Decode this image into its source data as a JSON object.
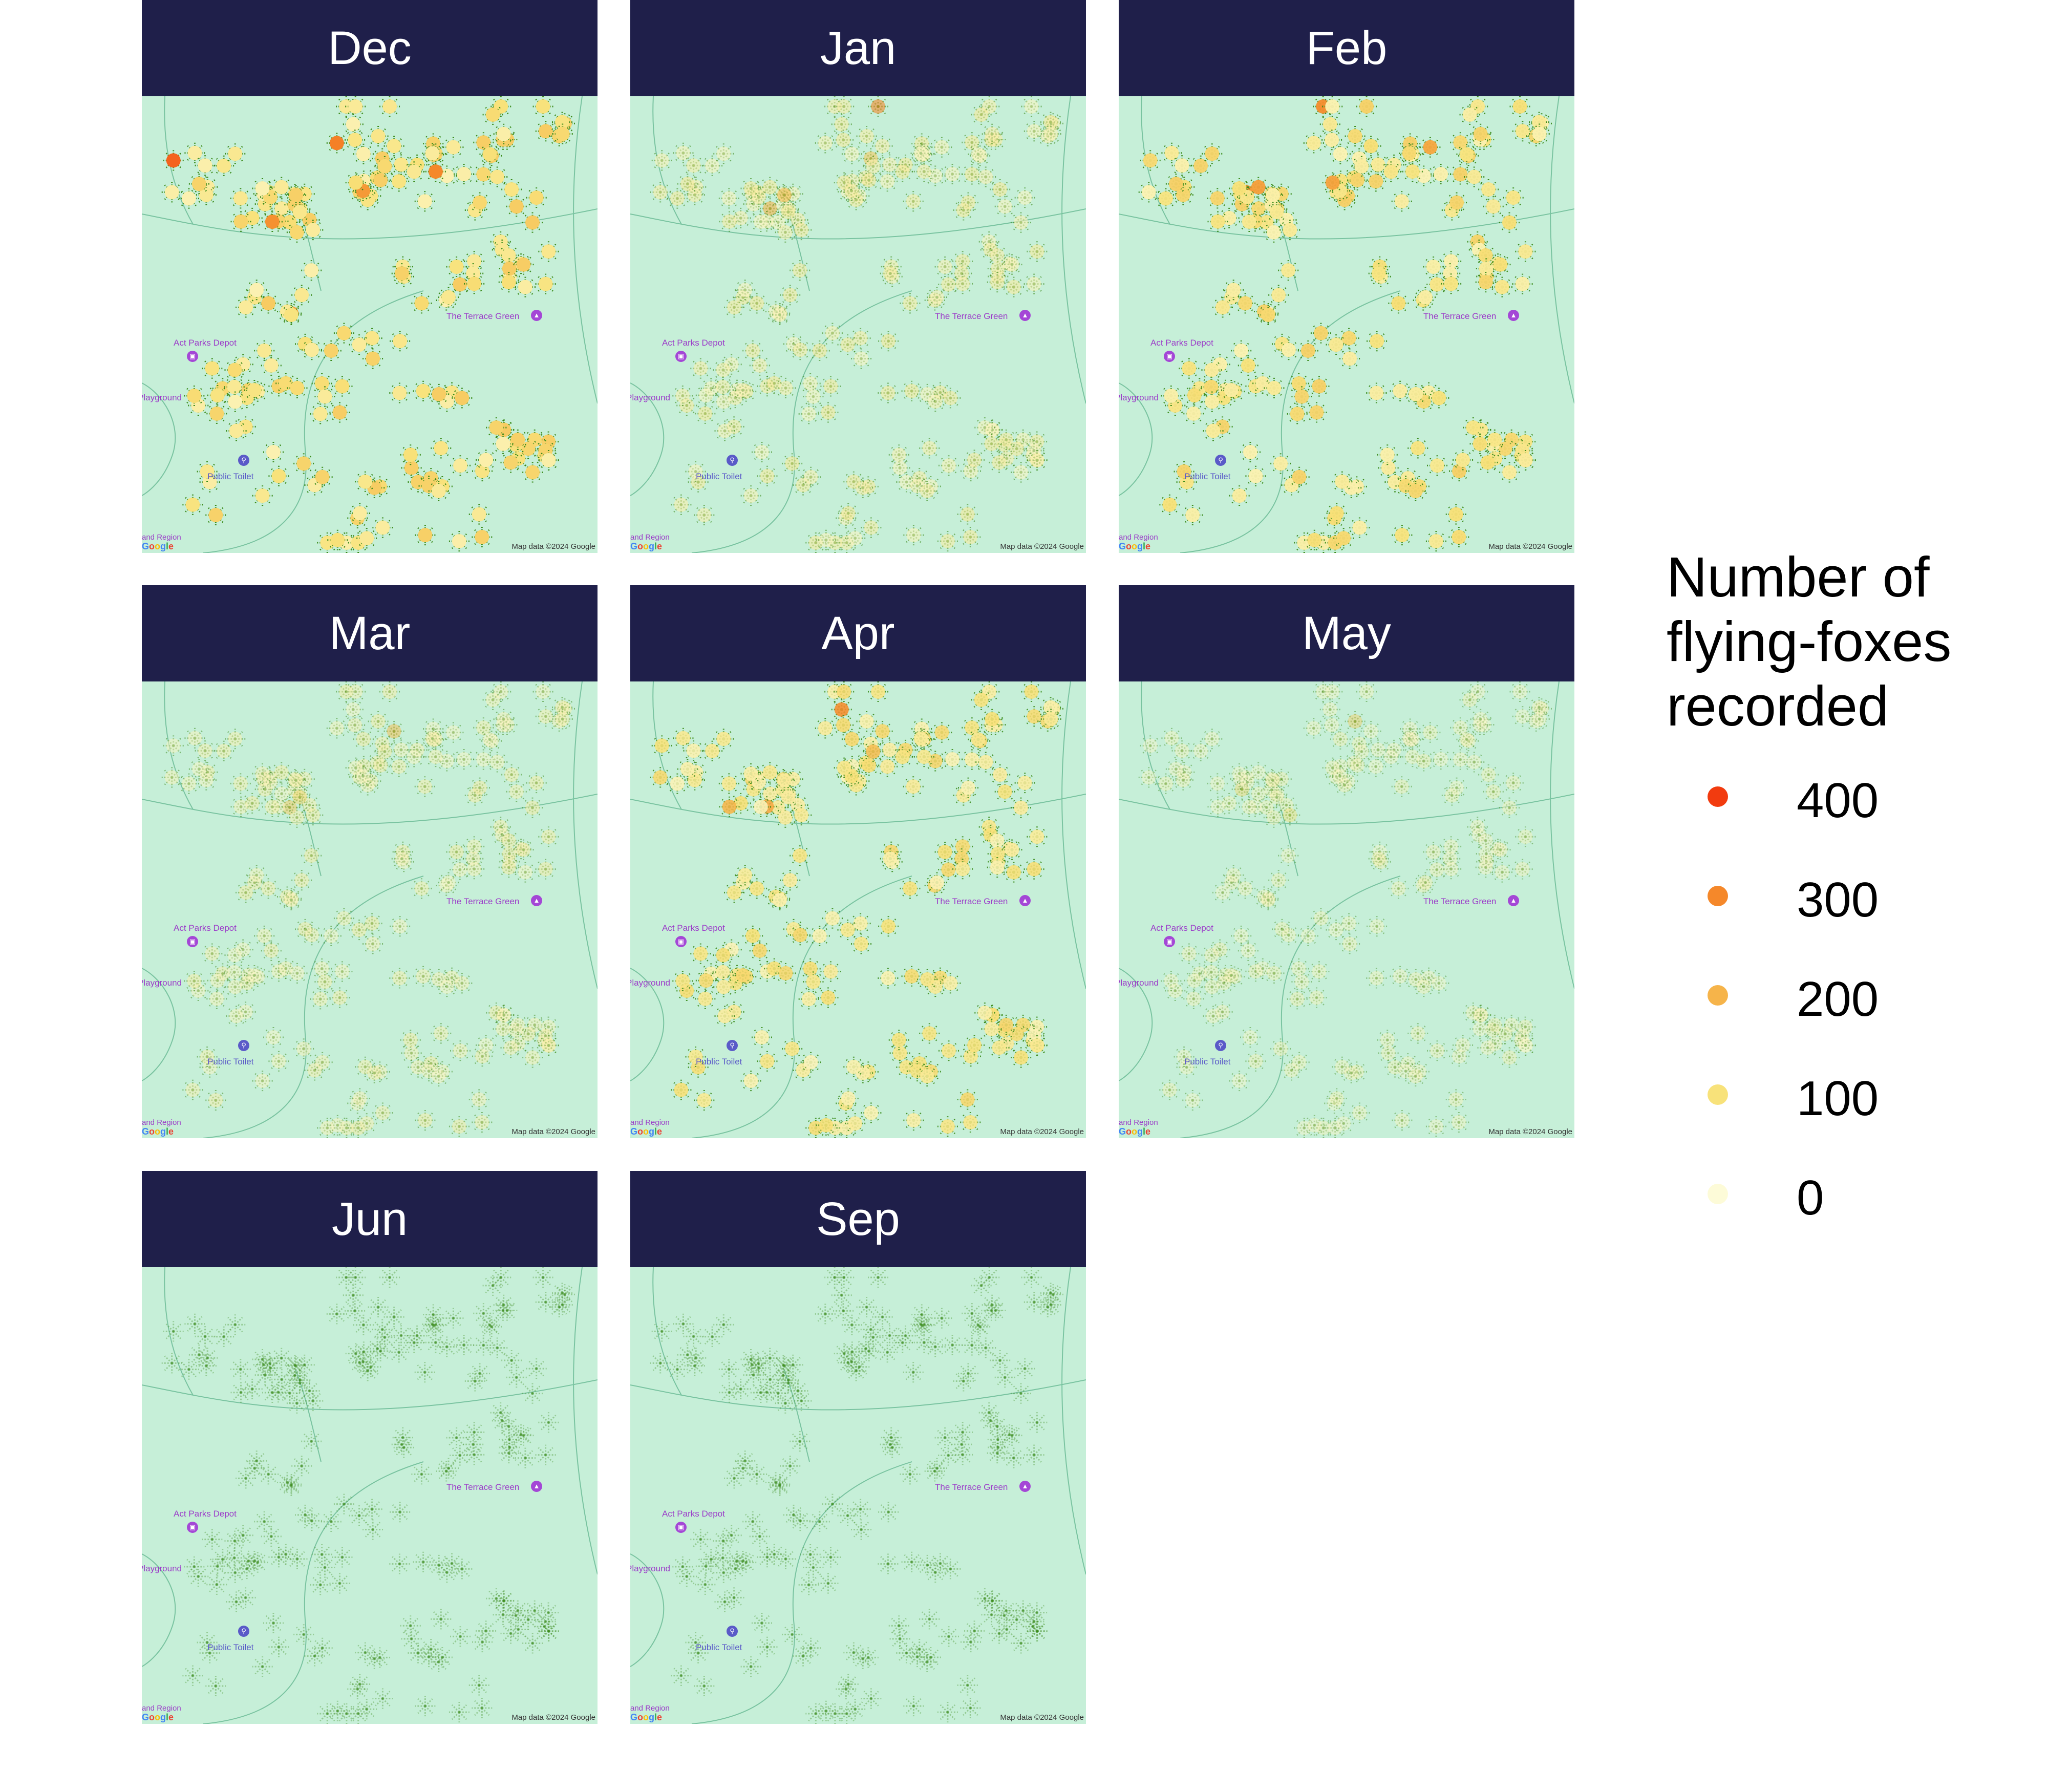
{
  "figure": {
    "legend": {
      "title_lines": [
        "Number of",
        "flying-foxes",
        "recorded"
      ],
      "entries": [
        {
          "label": "400",
          "value": 400,
          "color": "#f23b0f"
        },
        {
          "label": "300",
          "value": 300,
          "color": "#f5882a"
        },
        {
          "label": "200",
          "value": 200,
          "color": "#f6b44a"
        },
        {
          "label": "100",
          "value": 100,
          "color": "#f8e27a"
        },
        {
          "label": "0",
          "value": 0,
          "color": "#fdfbd8"
        }
      ]
    },
    "map_labels": {
      "depot": "Act Parks Depot",
      "terrace": "The Terrace Green",
      "playground": "Playground",
      "toilet": "Public Toilet",
      "region": "and Region",
      "logo": "Google",
      "attribution": "Map data ©2024 Google"
    },
    "map_colors": {
      "land": "#c6efd8",
      "road": "#79c3a0",
      "tree": "#3a8a1a",
      "strip": "#1f1f4a"
    }
  },
  "chart_data": {
    "type": "map",
    "color_scale": {
      "min": 0,
      "max": 400,
      "colors": [
        "#fdfbd8",
        "#f8e27a",
        "#f6b44a",
        "#f5882a",
        "#f23b0f"
      ]
    },
    "panels": [
      {
        "month": "Dec",
        "activity": 1.0,
        "hotspot_counts": [
          310,
          350,
          280,
          260,
          300,
          240
        ]
      },
      {
        "month": "Jan",
        "activity": 0.45,
        "hotspot_counts": [
          300,
          200,
          180,
          150
        ]
      },
      {
        "month": "Feb",
        "activity": 0.95,
        "hotspot_counts": [
          290,
          270,
          250,
          240,
          230
        ]
      },
      {
        "month": "Mar",
        "activity": 0.35,
        "hotspot_counts": [
          180,
          150,
          120
        ]
      },
      {
        "month": "Apr",
        "activity": 0.85,
        "hotspot_counts": [
          290,
          230,
          200,
          180
        ]
      },
      {
        "month": "May",
        "activity": 0.25,
        "hotspot_counts": [
          150,
          120,
          100
        ]
      },
      {
        "month": "Jun",
        "activity": 0.1,
        "hotspot_counts": [
          60
        ]
      },
      {
        "month": "Sep",
        "activity": 0.1,
        "hotspot_counts": [
          50
        ]
      }
    ]
  }
}
